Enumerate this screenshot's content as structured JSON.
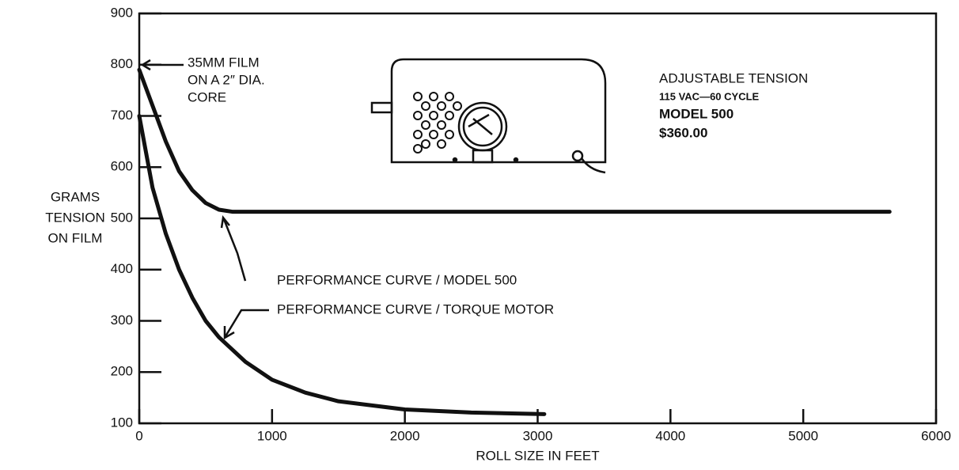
{
  "chart_data": {
    "type": "line",
    "x_label": "ROLL SIZE IN FEET",
    "y_label": [
      "GRAMS",
      "TENSION",
      "ON FILM"
    ],
    "xlim": [
      0,
      6000
    ],
    "xticks": [
      0,
      1000,
      2000,
      3000,
      4000,
      5000,
      6000
    ],
    "ylim": [
      100,
      900
    ],
    "yticks": [
      100,
      200,
      300,
      400,
      500,
      600,
      700,
      800,
      900
    ],
    "grid": false,
    "series": [
      {
        "name": "PERFORMANCE CURVE / MODEL 500",
        "color": "#111111",
        "x": [
          0,
          100,
          200,
          300,
          400,
          500,
          600,
          700,
          1000,
          3000,
          5650
        ],
        "values": [
          790,
          720,
          650,
          592,
          555,
          530,
          517,
          513,
          513,
          513,
          513
        ]
      },
      {
        "name": "PERFORMANCE CURVE / TORQUE MOTOR",
        "color": "#111111",
        "x": [
          0,
          100,
          200,
          300,
          400,
          500,
          600,
          800,
          1000,
          1250,
          1500,
          2000,
          2500,
          3050
        ],
        "values": [
          700,
          560,
          470,
          400,
          345,
          300,
          268,
          220,
          185,
          160,
          143,
          127,
          121,
          118
        ]
      }
    ],
    "annotations": {
      "film": [
        "35MM FILM",
        "ON A 2″ DIA.",
        "CORE"
      ],
      "product": [
        "ADJUSTABLE TENSION",
        "115 VAC—60 CYCLE",
        "MODEL 500",
        "$360.00"
      ]
    }
  }
}
